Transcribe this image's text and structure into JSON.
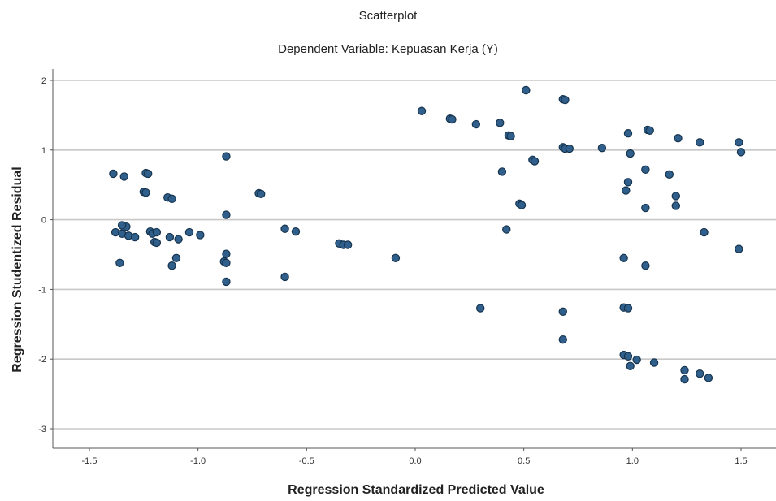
{
  "chart_data": {
    "type": "scatter",
    "title": "Scatterplot",
    "subtitle": "Dependent Variable: Kepuasan Kerja (Y)",
    "xlabel": "Regression Standardized Predicted Value",
    "ylabel": "Regression Studentized Residual",
    "xlim": [
      -1.5,
      1.5
    ],
    "ylim": [
      -3,
      2
    ],
    "xticks": [
      "-1.5",
      "-1.0",
      "-0.5",
      "0.0",
      "0.5",
      "1.0",
      "1.5"
    ],
    "yticks": [
      "2",
      "1",
      "0",
      "-1",
      "-2",
      "-3"
    ],
    "grid": "horizontal",
    "marker_color": "#2f5f8a",
    "points": [
      [
        -1.39,
        0.66
      ],
      [
        -1.34,
        0.62
      ],
      [
        -1.24,
        0.67
      ],
      [
        -1.23,
        0.66
      ],
      [
        -1.25,
        0.4
      ],
      [
        -1.24,
        0.39
      ],
      [
        -1.14,
        0.32
      ],
      [
        -1.12,
        0.3
      ],
      [
        -1.38,
        -0.18
      ],
      [
        -1.35,
        -0.2
      ],
      [
        -1.33,
        -0.1
      ],
      [
        -1.35,
        -0.08
      ],
      [
        -1.32,
        -0.23
      ],
      [
        -1.29,
        -0.25
      ],
      [
        -1.22,
        -0.17
      ],
      [
        -1.21,
        -0.2
      ],
      [
        -1.19,
        -0.18
      ],
      [
        -1.2,
        -0.32
      ],
      [
        -1.19,
        -0.33
      ],
      [
        -1.13,
        -0.25
      ],
      [
        -1.09,
        -0.28
      ],
      [
        -1.04,
        -0.18
      ],
      [
        -0.99,
        -0.22
      ],
      [
        -1.1,
        -0.55
      ],
      [
        -1.12,
        -0.66
      ],
      [
        -1.36,
        -0.62
      ],
      [
        -0.87,
        0.91
      ],
      [
        -0.87,
        0.07
      ],
      [
        -0.87,
        -0.49
      ],
      [
        -0.88,
        -0.6
      ],
      [
        -0.87,
        -0.62
      ],
      [
        -0.87,
        -0.89
      ],
      [
        -0.72,
        0.38
      ],
      [
        -0.71,
        0.37
      ],
      [
        -0.6,
        -0.13
      ],
      [
        -0.55,
        -0.17
      ],
      [
        -0.6,
        -0.82
      ],
      [
        -0.35,
        -0.34
      ],
      [
        -0.33,
        -0.36
      ],
      [
        -0.31,
        -0.36
      ],
      [
        -0.09,
        -0.55
      ],
      [
        0.03,
        1.56
      ],
      [
        0.16,
        1.45
      ],
      [
        0.17,
        1.44
      ],
      [
        0.28,
        1.37
      ],
      [
        0.39,
        1.39
      ],
      [
        0.43,
        1.21
      ],
      [
        0.44,
        1.2
      ],
      [
        0.51,
        1.86
      ],
      [
        0.68,
        1.73
      ],
      [
        0.69,
        1.72
      ],
      [
        0.4,
        0.69
      ],
      [
        0.54,
        0.86
      ],
      [
        0.55,
        0.84
      ],
      [
        0.48,
        0.23
      ],
      [
        0.49,
        0.21
      ],
      [
        0.42,
        -0.14
      ],
      [
        0.3,
        -1.27
      ],
      [
        0.68,
        1.04
      ],
      [
        0.69,
        1.02
      ],
      [
        0.71,
        1.02
      ],
      [
        0.86,
        1.03
      ],
      [
        0.98,
        1.24
      ],
      [
        1.07,
        1.29
      ],
      [
        1.08,
        1.28
      ],
      [
        0.99,
        0.95
      ],
      [
        1.21,
        1.17
      ],
      [
        1.31,
        1.11
      ],
      [
        1.49,
        1.11
      ],
      [
        1.5,
        0.97
      ],
      [
        0.98,
        0.54
      ],
      [
        0.97,
        0.42
      ],
      [
        1.06,
        0.72
      ],
      [
        1.17,
        0.65
      ],
      [
        1.2,
        0.34
      ],
      [
        1.2,
        0.2
      ],
      [
        1.06,
        0.17
      ],
      [
        1.33,
        -0.18
      ],
      [
        1.49,
        -0.42
      ],
      [
        0.96,
        -0.55
      ],
      [
        1.06,
        -0.66
      ],
      [
        0.68,
        -1.32
      ],
      [
        0.68,
        -1.72
      ],
      [
        0.96,
        -1.26
      ],
      [
        0.98,
        -1.27
      ],
      [
        0.96,
        -1.94
      ],
      [
        0.98,
        -1.96
      ],
      [
        0.99,
        -2.1
      ],
      [
        1.02,
        -2.01
      ],
      [
        1.1,
        -2.05
      ],
      [
        1.24,
        -2.16
      ],
      [
        1.24,
        -2.29
      ],
      [
        1.31,
        -2.21
      ],
      [
        1.35,
        -2.27
      ]
    ]
  }
}
